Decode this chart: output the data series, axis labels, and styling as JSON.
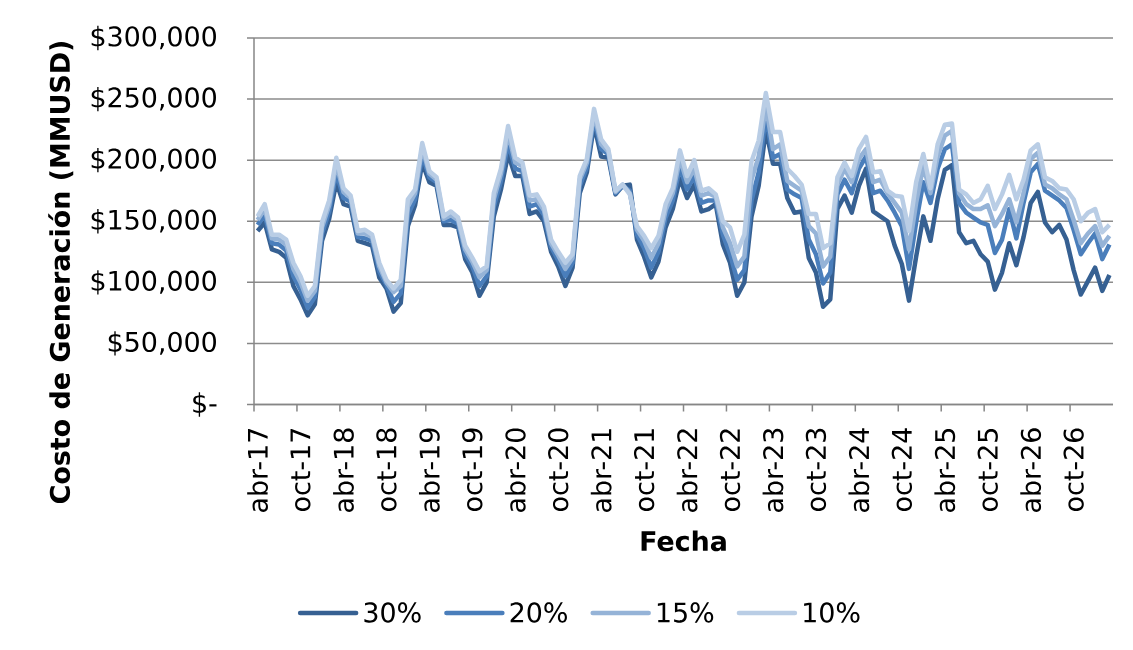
{
  "chart_data": {
    "type": "line",
    "xlabel": "Fecha",
    "ylabel": "Costo de Generación (MMUSD)",
    "legend": "bottom",
    "grid": "y",
    "categories": [
      "abr-17",
      null,
      null,
      null,
      null,
      null,
      "oct-17",
      null,
      null,
      null,
      null,
      null,
      "abr-18",
      null,
      null,
      null,
      null,
      null,
      "oct-18",
      null,
      null,
      null,
      null,
      null,
      "abr-19",
      null,
      null,
      null,
      null,
      null,
      "oct-19",
      null,
      null,
      null,
      null,
      null,
      "abr-20",
      null,
      null,
      null,
      null,
      null,
      "oct-20",
      null,
      null,
      null,
      null,
      null,
      "abr-21",
      null,
      null,
      null,
      null,
      null,
      "oct-21",
      null,
      null,
      null,
      null,
      null,
      "abr-22",
      null,
      null,
      null,
      null,
      null,
      "oct-22",
      null,
      null,
      null,
      null,
      null,
      "abr-23",
      null,
      null,
      null,
      null,
      null,
      "oct-23",
      null,
      null,
      null,
      null,
      null,
      "abr-24",
      null,
      null,
      null,
      null,
      null,
      "oct-24",
      null,
      null,
      null,
      null,
      null,
      "abr-25",
      null,
      null,
      null,
      null,
      null,
      "oct-25",
      null,
      null,
      null,
      null,
      null,
      "abr-26",
      null,
      null,
      null,
      null,
      null,
      "oct-26",
      null,
      null,
      null,
      null,
      null
    ],
    "ylim": [
      0,
      300000
    ],
    "yticks": [
      {
        "value": 0,
        "label": "$-"
      },
      {
        "value": 50000,
        "label": "$50,000"
      },
      {
        "value": 100000,
        "label": "$100,000"
      },
      {
        "value": 150000,
        "label": "$150,000"
      },
      {
        "value": 200000,
        "label": "$200,000"
      },
      {
        "value": 250000,
        "label": "$250,000"
      },
      {
        "value": 300000,
        "label": "$300,000"
      }
    ],
    "series": [
      {
        "name": "30%",
        "color": "#366092",
        "values": [
          142000,
          149000,
          127000,
          125000,
          120000,
          97000,
          86000,
          73000,
          82000,
          134000,
          152000,
          182000,
          164000,
          162000,
          134000,
          132000,
          130000,
          104000,
          95000,
          76000,
          83000,
          146000,
          163000,
          198000,
          182000,
          179000,
          147000,
          147000,
          145000,
          119000,
          108000,
          89000,
          100000,
          154000,
          176000,
          205000,
          187000,
          187000,
          156000,
          158000,
          150000,
          125000,
          113000,
          97000,
          112000,
          173000,
          190000,
          229000,
          203000,
          202000,
          172000,
          179000,
          180000,
          135000,
          121000,
          104000,
          117000,
          145000,
          160000,
          185000,
          169000,
          180000,
          158000,
          160000,
          164000,
          131000,
          116000,
          89000,
          100000,
          154000,
          179000,
          225000,
          197000,
          197000,
          169000,
          157000,
          158000,
          120000,
          108000,
          80000,
          86000,
          160000,
          171000,
          157000,
          179000,
          193000,
          158000,
          154000,
          150000,
          130000,
          115000,
          85000,
          121000,
          154000,
          134000,
          168000,
          192000,
          196000,
          141000,
          132000,
          134000,
          123000,
          117000,
          94000,
          108000,
          132000,
          114000,
          137000,
          165000,
          174000,
          149000,
          141000,
          147000,
          135000,
          110000,
          90000,
          101000,
          112000,
          93000,
          106000
        ]
      },
      {
        "name": "20%",
        "color": "#4a7ebb",
        "values": [
          147000,
          155000,
          132000,
          131000,
          126000,
          105000,
          94000,
          79000,
          88000,
          140000,
          158000,
          190000,
          169000,
          166000,
          137000,
          136000,
          134000,
          109000,
          98000,
          84000,
          91000,
          155000,
          168000,
          204000,
          186000,
          182000,
          150000,
          151000,
          148000,
          123000,
          113000,
          97000,
          105000,
          162000,
          183000,
          214000,
          193000,
          191000,
          162000,
          164000,
          155000,
          129000,
          118000,
          105000,
          116000,
          179000,
          194000,
          234000,
          209000,
          205000,
          173000,
          179000,
          175000,
          139000,
          128000,
          112000,
          125000,
          153000,
          167000,
          194000,
          176000,
          187000,
          165000,
          167000,
          167000,
          139000,
          123000,
          102000,
          110000,
          167000,
          190000,
          236000,
          202000,
          205000,
          176000,
          172000,
          169000,
          135000,
          123000,
          99000,
          108000,
          172000,
          184000,
          173000,
          193000,
          203000,
          173000,
          175000,
          167000,
          157000,
          146000,
          111000,
          149000,
          182000,
          165000,
          193000,
          209000,
          213000,
          165000,
          157000,
          153000,
          149000,
          147000,
          124000,
          135000,
          160000,
          136000,
          165000,
          190000,
          197000,
          175000,
          171000,
          167000,
          161000,
          143000,
          123000,
          132000,
          140000,
          119000,
          131000
        ]
      },
      {
        "name": "15%",
        "color": "#95b3d7",
        "values": [
          151000,
          160000,
          136000,
          135000,
          131000,
          111000,
          100000,
          85000,
          93000,
          145000,
          163000,
          197000,
          174000,
          169000,
          140000,
          140000,
          137000,
          113000,
          100000,
          92000,
          97000,
          162000,
          173000,
          210000,
          189000,
          184000,
          152000,
          155000,
          151000,
          127000,
          117000,
          104000,
          110000,
          168000,
          189000,
          222000,
          198000,
          195000,
          167000,
          168000,
          159000,
          132000,
          122000,
          111000,
          120000,
          184000,
          198000,
          238000,
          213000,
          207000,
          174000,
          180000,
          173000,
          143000,
          134000,
          120000,
          132000,
          159000,
          173000,
          201000,
          182000,
          193000,
          171000,
          173000,
          170000,
          145000,
          132000,
          113000,
          121000,
          184000,
          203000,
          245000,
          209000,
          213000,
          183000,
          179000,
          175000,
          146000,
          140000,
          113000,
          121000,
          180000,
          193000,
          182000,
          201000,
          209000,
          182000,
          184000,
          173000,
          165000,
          157000,
          127000,
          165000,
          195000,
          173000,
          203000,
          220000,
          224000,
          173000,
          164000,
          160000,
          160000,
          163000,
          146000,
          156000,
          168000,
          149000,
          173000,
          201000,
          206000,
          180000,
          177000,
          172000,
          168000,
          151000,
          132000,
          140000,
          146000,
          130000,
          138000
        ]
      },
      {
        "name": "10%",
        "color": "#b9cde5",
        "values": [
          154000,
          164000,
          139000,
          139000,
          135000,
          116000,
          105000,
          89000,
          97000,
          149000,
          167000,
          202000,
          177000,
          171000,
          142000,
          143000,
          139000,
          116000,
          102000,
          95000,
          102000,
          168000,
          176000,
          214000,
          191000,
          186000,
          154000,
          158000,
          153000,
          130000,
          120000,
          109000,
          113000,
          173000,
          193000,
          228000,
          202000,
          198000,
          171000,
          172000,
          162000,
          135000,
          125000,
          116000,
          123000,
          187000,
          201000,
          242000,
          217000,
          209000,
          175000,
          180000,
          172000,
          146000,
          138000,
          128000,
          138000,
          164000,
          177000,
          208000,
          187000,
          200000,
          175000,
          177000,
          172000,
          150000,
          145000,
          125000,
          139000,
          199000,
          216000,
          255000,
          223000,
          223000,
          193000,
          187000,
          180000,
          156000,
          156000,
          128000,
          132000,
          186000,
          198000,
          187000,
          209000,
          219000,
          190000,
          191000,
          175000,
          171000,
          170000,
          142000,
          182000,
          205000,
          177000,
          213000,
          229000,
          230000,
          176000,
          172000,
          165000,
          168000,
          179000,
          160000,
          172000,
          188000,
          168000,
          184000,
          208000,
          213000,
          186000,
          183000,
          177000,
          176000,
          168000,
          150000,
          157000,
          160000,
          141000,
          147000
        ]
      }
    ]
  }
}
